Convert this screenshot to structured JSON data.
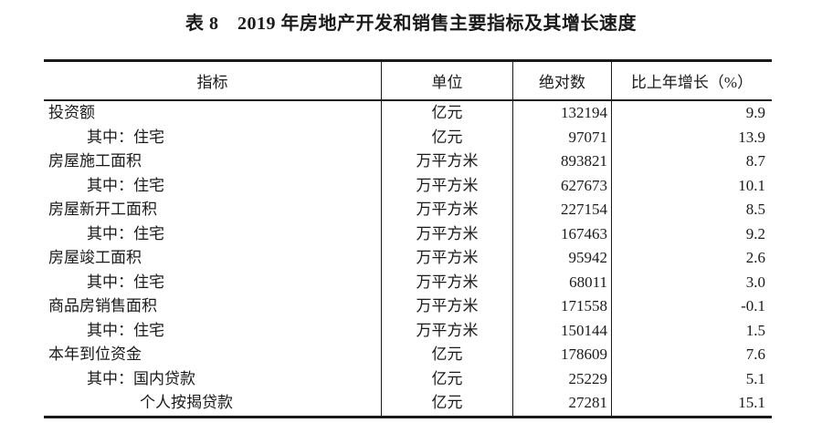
{
  "title": "表 8　2019 年房地产开发和销售主要指标及其增长速度",
  "colors": {
    "text": "#1a1a1a",
    "border": "#1a1a1a",
    "background": "#ffffff"
  },
  "table": {
    "columns": [
      "指标",
      "单位",
      "绝对数",
      "比上年增长（%）"
    ],
    "rows": [
      {
        "indent": 0,
        "indicator": "投资额",
        "unit": "亿元",
        "value": "132194",
        "growth": "9.9"
      },
      {
        "indent": 1,
        "indicator": "其中：住宅",
        "unit": "亿元",
        "value": "97071",
        "growth": "13.9"
      },
      {
        "indent": 0,
        "indicator": "房屋施工面积",
        "unit": "万平方米",
        "value": "893821",
        "growth": "8.7"
      },
      {
        "indent": 1,
        "indicator": "其中：住宅",
        "unit": "万平方米",
        "value": "627673",
        "growth": "10.1"
      },
      {
        "indent": 0,
        "indicator": "房屋新开工面积",
        "unit": "万平方米",
        "value": "227154",
        "growth": "8.5"
      },
      {
        "indent": 1,
        "indicator": "其中：住宅",
        "unit": "万平方米",
        "value": "167463",
        "growth": "9.2"
      },
      {
        "indent": 0,
        "indicator": "房屋竣工面积",
        "unit": "万平方米",
        "value": "95942",
        "growth": "2.6"
      },
      {
        "indent": 1,
        "indicator": "其中：住宅",
        "unit": "万平方米",
        "value": "68011",
        "growth": "3.0"
      },
      {
        "indent": 0,
        "indicator": "商品房销售面积",
        "unit": "万平方米",
        "value": "171558",
        "growth": "-0.1"
      },
      {
        "indent": 1,
        "indicator": "其中：住宅",
        "unit": "万平方米",
        "value": "150144",
        "growth": "1.5"
      },
      {
        "indent": 0,
        "indicator": "本年到位资金",
        "unit": "亿元",
        "value": "178609",
        "growth": "7.6"
      },
      {
        "indent": 1,
        "indicator": "其中：国内贷款",
        "unit": "亿元",
        "value": "25229",
        "growth": "5.1"
      },
      {
        "indent": 2,
        "indicator": "个人按揭贷款",
        "unit": "亿元",
        "value": "27281",
        "growth": "15.1"
      }
    ]
  }
}
